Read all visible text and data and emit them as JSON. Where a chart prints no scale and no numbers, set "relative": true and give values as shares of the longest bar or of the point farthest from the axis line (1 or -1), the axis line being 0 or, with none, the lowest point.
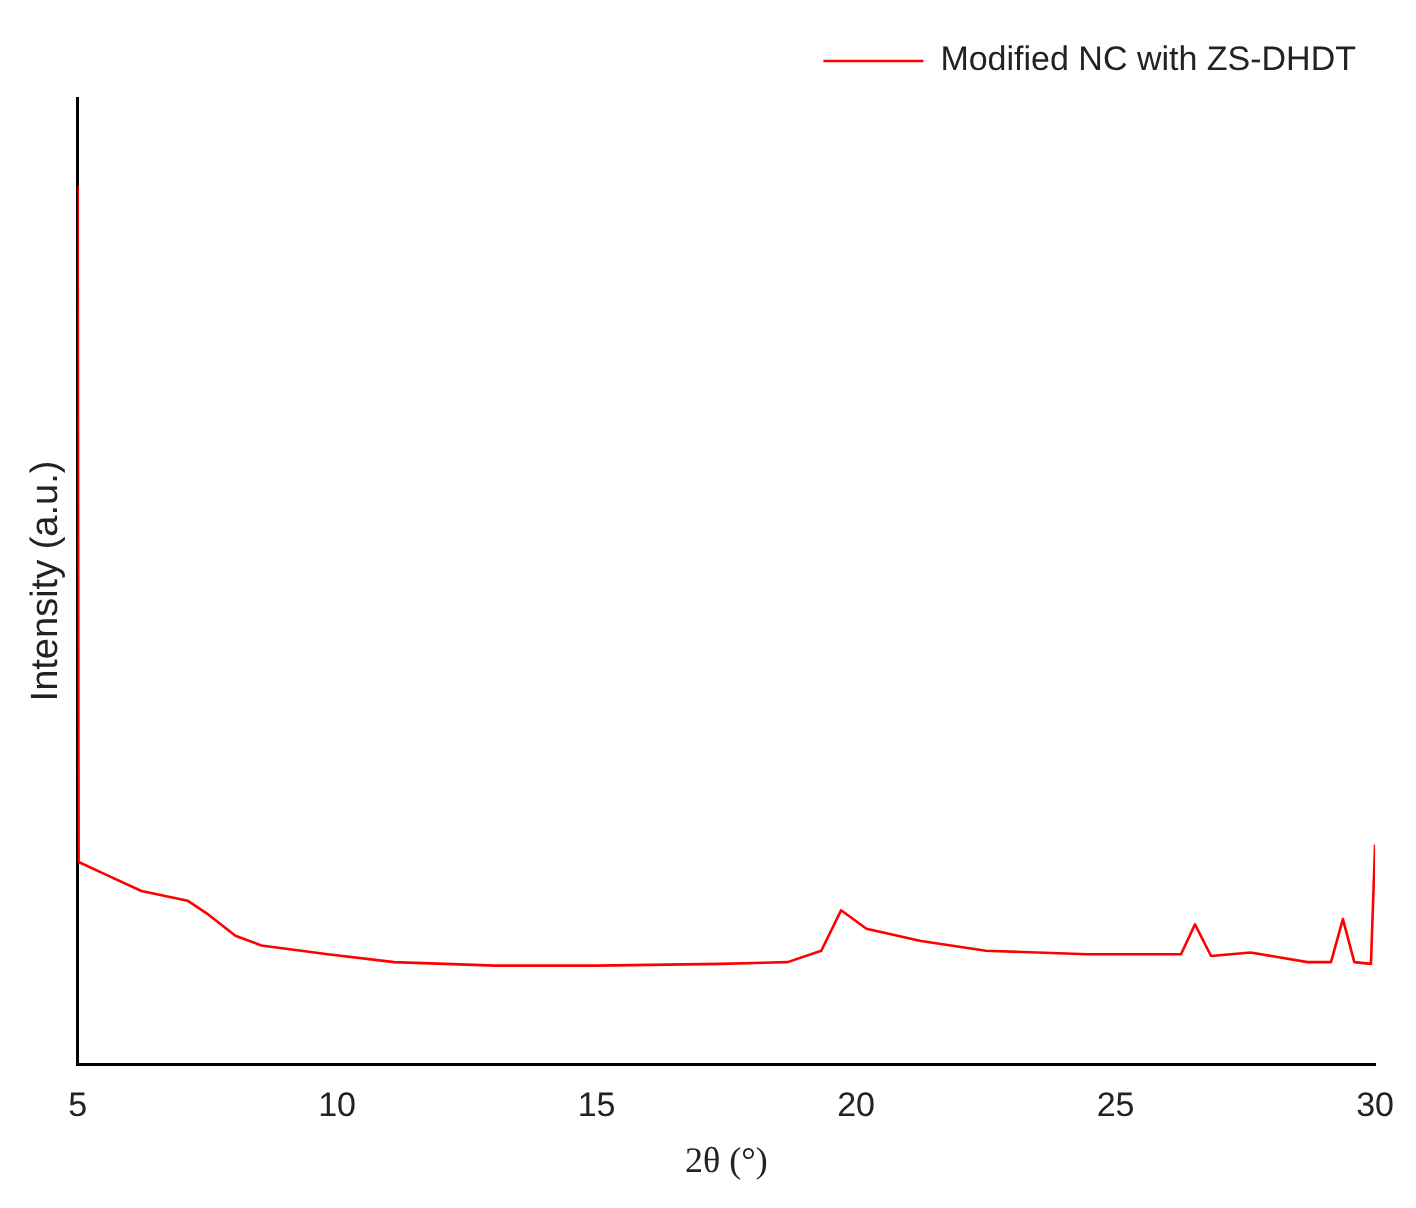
{
  "chart_data": {
    "type": "line",
    "xlabel": "2θ (°)",
    "ylabel": "Intensity (a.u.)",
    "relative": true,
    "xlim": [
      5,
      30
    ],
    "xticks": [
      5,
      10,
      15,
      20,
      25,
      30
    ],
    "grid": false,
    "legend": "top right",
    "marker": "none",
    "line_style": "solid",
    "series": [
      {
        "name": "Modified NC with ZS-DHDT",
        "color": "#ff0000",
        "x": [
          5,
          5.02,
          5.46,
          6.23,
          7.12,
          7.5,
          8.04,
          8.54,
          9.82,
          11.1,
          13.05,
          15,
          17.4,
          18.68,
          19.33,
          19.71,
          20.2,
          21.25,
          22.5,
          24.45,
          26.26,
          26.53,
          26.84,
          27.6,
          28.7,
          29.15,
          29.38,
          29.6,
          29.92,
          30
        ],
        "values": [
          1.0,
          0.23,
          0.218,
          0.197,
          0.186,
          0.171,
          0.146,
          0.135,
          0.125,
          0.116,
          0.112,
          0.112,
          0.114,
          0.116,
          0.129,
          0.175,
          0.154,
          0.14,
          0.129,
          0.125,
          0.125,
          0.159,
          0.123,
          0.127,
          0.116,
          0.116,
          0.165,
          0.116,
          0.114,
          0.25
        ]
      }
    ]
  }
}
